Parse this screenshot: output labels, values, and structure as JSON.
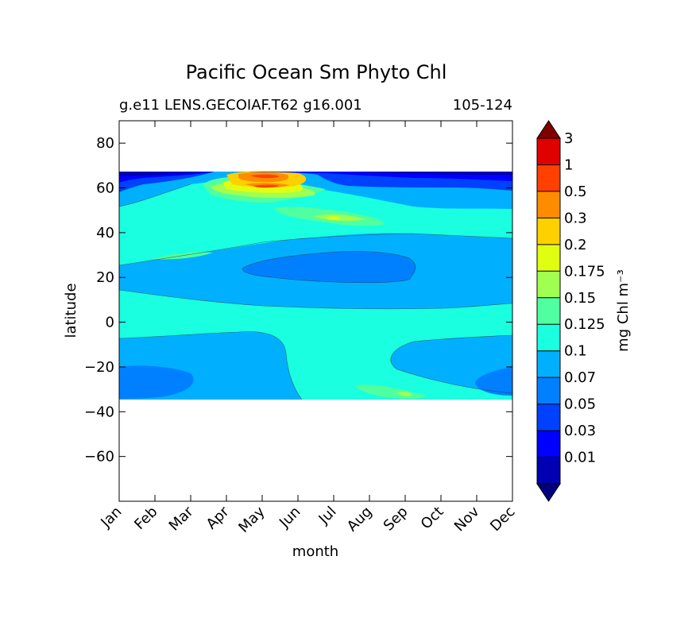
{
  "chart_data": {
    "type": "heatmap",
    "title": "Pacific Ocean Sm Phyto Chl",
    "subtitle_left": "g.e11 LENS.GECOIAF.T62 g16.001",
    "subtitle_right": "105-124",
    "xlabel": "month",
    "ylabel": "latitude",
    "x_categories": [
      "Jan",
      "Feb",
      "Mar",
      "Apr",
      "May",
      "Jun",
      "Jul",
      "Aug",
      "Sep",
      "Oct",
      "Nov",
      "Dec"
    ],
    "xlim": [
      1,
      12
    ],
    "ylim": [
      -80,
      90
    ],
    "y_ticks": [
      80,
      60,
      40,
      20,
      0,
      -20,
      -40,
      -60
    ],
    "y_tick_labels": [
      "80",
      "60",
      "40",
      "20",
      "0",
      "−20",
      "−40",
      "−60"
    ],
    "data_lat_range": [
      -34,
      67
    ],
    "colorbar": {
      "label": "mg Chl m⁻³",
      "levels": [
        "0.01",
        "0.03",
        "0.05",
        "0.07",
        "0.1",
        "0.125",
        "0.15",
        "0.175",
        "0.2",
        "0.3",
        "0.5",
        "1",
        "3"
      ],
      "colors": [
        "#00007f",
        "#0000b2",
        "#0000ff",
        "#0040ff",
        "#0080ff",
        "#00b0ff",
        "#19ffe0",
        "#50ff9f",
        "#a0ff50",
        "#e0ff10",
        "#ffd000",
        "#ff8c00",
        "#ff4000",
        "#e00000",
        "#800000"
      ],
      "extend": "both"
    },
    "regions": [
      {
        "level": 4,
        "lat": [
          -34,
          67
        ],
        "month": [
          1,
          12
        ]
      },
      {
        "level": 6,
        "desc": "equatorial/transition band",
        "lat": [
          -34,
          55
        ]
      },
      {
        "level": 5,
        "desc": "north subtropical low",
        "lat": [
          10,
          38
        ]
      },
      {
        "level": 3,
        "desc": "north subtropical minimum",
        "lat": [
          18,
          33
        ],
        "month": [
          4.8,
          9.2
        ]
      },
      {
        "level": 5,
        "desc": "south subtropical low",
        "lat": [
          -34,
          -5
        ]
      },
      {
        "level": 3,
        "desc": "south subtropical minimum",
        "lat": [
          -34,
          -19
        ]
      },
      {
        "level": 8,
        "desc": "spring bloom",
        "lat": [
          42,
          66
        ],
        "month": [
          3,
          8.5
        ]
      },
      {
        "level": 11,
        "desc": "bloom peak",
        "lat": [
          58,
          66
        ],
        "month": [
          4.5,
          6
        ]
      },
      {
        "level": 1,
        "desc": "ice edge",
        "lat": [
          60,
          67
        ]
      }
    ]
  }
}
